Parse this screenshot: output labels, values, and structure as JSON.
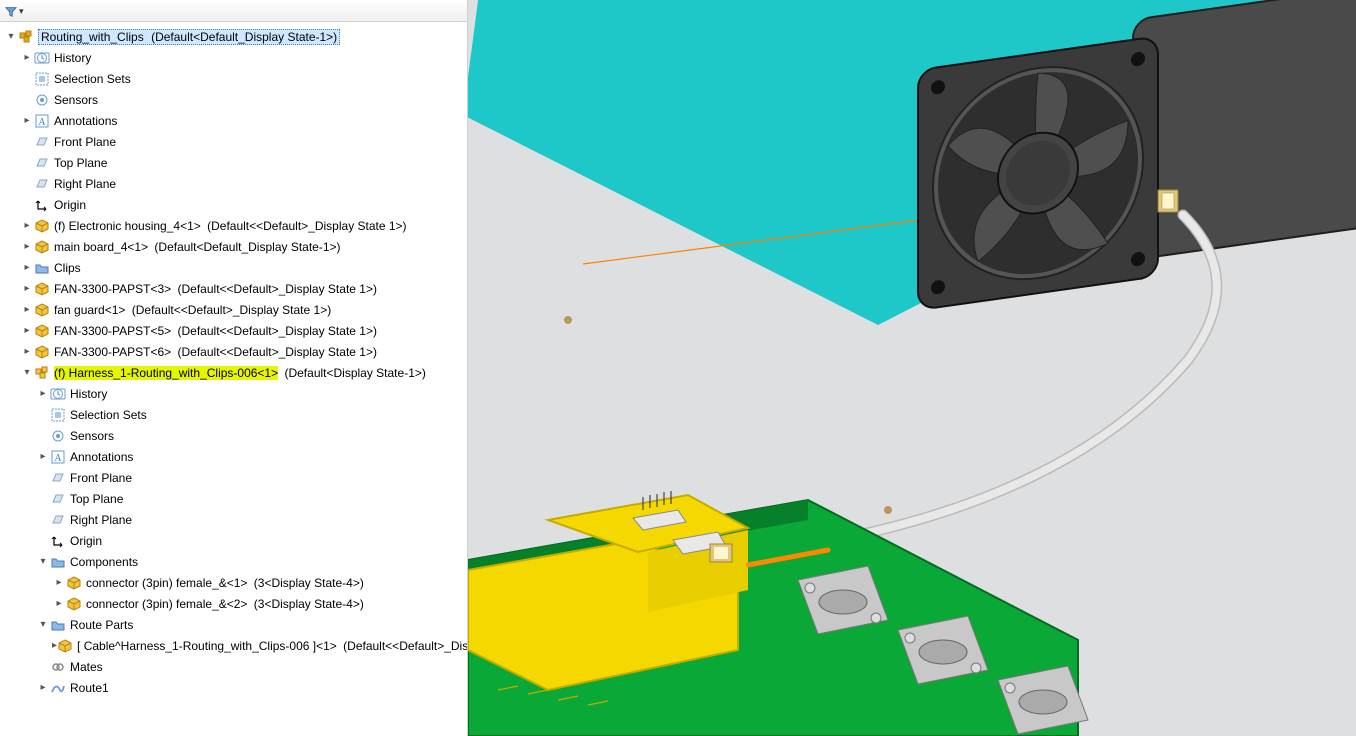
{
  "root": {
    "name": "Routing_with_Clips",
    "state": "(Default<Default_Display State-1>)"
  },
  "tree": [
    {
      "id": "history",
      "label": "History",
      "icon": "history",
      "indent": 1,
      "caret": "closed"
    },
    {
      "id": "selection-sets",
      "label": "Selection Sets",
      "icon": "selection",
      "indent": 1,
      "caret": "none"
    },
    {
      "id": "sensors",
      "label": "Sensors",
      "icon": "sensor",
      "indent": 1,
      "caret": "none"
    },
    {
      "id": "annotations",
      "label": "Annotations",
      "icon": "annotation",
      "indent": 1,
      "caret": "closed"
    },
    {
      "id": "front-plane",
      "label": "Front Plane",
      "icon": "plane",
      "indent": 1,
      "caret": "none"
    },
    {
      "id": "top-plane",
      "label": "Top Plane",
      "icon": "plane",
      "indent": 1,
      "caret": "none"
    },
    {
      "id": "right-plane",
      "label": "Right Plane",
      "icon": "plane",
      "indent": 1,
      "caret": "none"
    },
    {
      "id": "origin",
      "label": "Origin",
      "icon": "origin",
      "indent": 1,
      "caret": "none"
    },
    {
      "id": "electronic-housing",
      "label": "(f) Electronic housing_4<1>",
      "state": "(Default<<Default>_Display State 1>)",
      "icon": "part",
      "indent": 1,
      "caret": "closed"
    },
    {
      "id": "main-board",
      "label": "main board_4<1>",
      "state": "(Default<Default_Display State-1>)",
      "icon": "part",
      "indent": 1,
      "caret": "closed"
    },
    {
      "id": "clips",
      "label": "Clips",
      "icon": "folder",
      "indent": 1,
      "caret": "closed"
    },
    {
      "id": "fan-3300-3",
      "label": "FAN-3300-PAPST<3>",
      "state": "(Default<<Default>_Display State 1>)",
      "icon": "part",
      "indent": 1,
      "caret": "closed"
    },
    {
      "id": "fan-guard",
      "label": "fan guard<1>",
      "state": "(Default<<Default>_Display State 1>)",
      "icon": "part",
      "indent": 1,
      "caret": "closed"
    },
    {
      "id": "fan-3300-5",
      "label": "FAN-3300-PAPST<5>",
      "state": "(Default<<Default>_Display State 1>)",
      "icon": "part",
      "indent": 1,
      "caret": "closed"
    },
    {
      "id": "fan-3300-6",
      "label": "FAN-3300-PAPST<6>",
      "state": "(Default<<Default>_Display State 1>)",
      "icon": "part",
      "indent": 1,
      "caret": "closed"
    },
    {
      "id": "harness",
      "label": "(f) Harness_1-Routing_with_Clips-006<1>",
      "state": "(Default<Display State-1>)",
      "icon": "assembly",
      "indent": 1,
      "caret": "open",
      "highlight": true
    },
    {
      "id": "h-history",
      "label": "History",
      "icon": "history",
      "indent": 2,
      "caret": "closed"
    },
    {
      "id": "h-selection-sets",
      "label": "Selection Sets",
      "icon": "selection",
      "indent": 2,
      "caret": "none"
    },
    {
      "id": "h-sensors",
      "label": "Sensors",
      "icon": "sensor",
      "indent": 2,
      "caret": "none"
    },
    {
      "id": "h-annotations",
      "label": "Annotations",
      "icon": "annotation",
      "indent": 2,
      "caret": "closed"
    },
    {
      "id": "h-front-plane",
      "label": "Front Plane",
      "icon": "plane",
      "indent": 2,
      "caret": "none"
    },
    {
      "id": "h-top-plane",
      "label": "Top Plane",
      "icon": "plane",
      "indent": 2,
      "caret": "none"
    },
    {
      "id": "h-right-plane",
      "label": "Right Plane",
      "icon": "plane",
      "indent": 2,
      "caret": "none"
    },
    {
      "id": "h-origin",
      "label": "Origin",
      "icon": "origin",
      "indent": 2,
      "caret": "none"
    },
    {
      "id": "h-components",
      "label": "Components",
      "icon": "folder",
      "indent": 2,
      "caret": "open"
    },
    {
      "id": "connector-1",
      "label": "connector (3pin) female_&<1>",
      "state": "(3<Display State-4>)",
      "icon": "part",
      "indent": 3,
      "caret": "closed"
    },
    {
      "id": "connector-2",
      "label": "connector (3pin) female_&<2>",
      "state": "(3<Display State-4>)",
      "icon": "part",
      "indent": 3,
      "caret": "closed"
    },
    {
      "id": "route-parts",
      "label": "Route Parts",
      "icon": "folder",
      "indent": 2,
      "caret": "open"
    },
    {
      "id": "cable",
      "label": "[ Cable^Harness_1-Routing_with_Clips-006 ]<1>",
      "state": "(Default<<Default>_Disp",
      "icon": "part",
      "indent": 3,
      "caret": "closed"
    },
    {
      "id": "mates",
      "label": "Mates",
      "icon": "mates",
      "indent": 2,
      "caret": "none"
    },
    {
      "id": "route1",
      "label": "Route1",
      "icon": "route",
      "indent": 2,
      "caret": "closed"
    }
  ],
  "icons": {
    "history": {
      "fg": "#5b8dc8",
      "ch": "⌚"
    },
    "selection": {
      "fg": "#5b8dc8",
      "ch": "▦"
    },
    "sensor": {
      "fg": "#5b8dc8",
      "ch": "◎"
    },
    "annotation": {
      "fg": "#5b8dc8",
      "ch": "A"
    },
    "plane": {
      "fg": "#8ba8c6",
      "ch": "▱"
    },
    "origin": {
      "fg": "#000",
      "ch": "┗"
    },
    "part": {
      "fg": "#e6a817",
      "ch": "◈"
    },
    "assembly": {
      "fg": "#e6a817",
      "ch": "❒"
    },
    "folder": {
      "fg": "#7aa6d8",
      "ch": "▇"
    },
    "mates": {
      "fg": "#888",
      "ch": "⊘"
    },
    "route": {
      "fg": "#5b8dc8",
      "ch": "∿"
    }
  },
  "colors": {
    "panel_bg": "#ffffff",
    "viewport_bg": "#dedfe0",
    "teal_wall": "#1ec8c8",
    "pcb_green": "#0aa836",
    "pcb_yellow": "#f5d800",
    "fan_dark": "#3a3a3a",
    "fan_mid": "#555555",
    "cable_grey": "#d8d8d8",
    "connector_tan": "#e0c878",
    "highlight": "#e6f500",
    "select": "#cfe8ff",
    "orange_line": "#ff8000",
    "steel": "#c8c8c8"
  }
}
